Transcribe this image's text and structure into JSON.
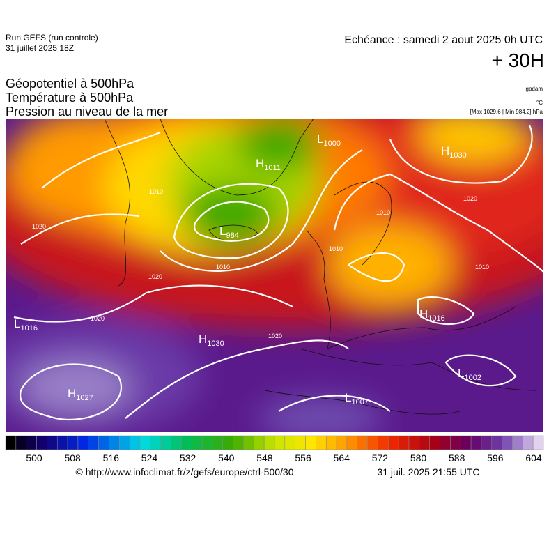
{
  "header": {
    "run": "Run GEFS (run controle)",
    "run_date": "31 juillet 2025 18Z",
    "valid": "Echéance : samedi 2 aout 2025 0h UTC",
    "lead": "+ 30H",
    "fields": [
      "Géopotentiel à 500hPa",
      "Température à 500hPa",
      "Pression au niveau de la mer"
    ],
    "unit_geo": "gpdam",
    "unit_temp": "°C",
    "extremes": "[Max 1029.6 | Min 984.2] hPa"
  },
  "centers": [
    {
      "letter": "L",
      "value": 1000
    },
    {
      "letter": "H",
      "value": 1011
    },
    {
      "letter": "L",
      "value": 984
    },
    {
      "letter": "H",
      "value": 1030
    },
    {
      "letter": "L",
      "value": 1016
    },
    {
      "letter": "H",
      "value": 1030
    },
    {
      "letter": "H",
      "value": 1016
    },
    {
      "letter": "H",
      "value": 1027
    },
    {
      "letter": "L",
      "value": 1007
    },
    {
      "letter": "L",
      "value": 1002
    }
  ],
  "isobar_labels": [
    1020,
    1010,
    1020,
    1020,
    1010,
    1020,
    1010,
    1010,
    1020,
    1010
  ],
  "colorbar": {
    "ticks": [
      500,
      508,
      516,
      524,
      532,
      540,
      548,
      556,
      564,
      572,
      580,
      588,
      596,
      604
    ]
  },
  "footer": {
    "source": "© http://www.infoclimat.fr/z/gefs/europe/ctrl-500/30",
    "generated": "31 juil. 2025 21:55 UTC"
  }
}
